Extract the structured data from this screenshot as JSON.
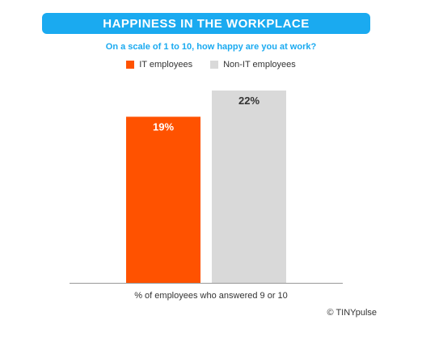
{
  "chart_data": {
    "type": "bar",
    "title": "HAPPINESS IN THE WORKPLACE",
    "subtitle": "On a scale of 1 to 10, how happy are you at work?",
    "xlabel": "% of employees who answered 9 or 10",
    "ylabel": "",
    "ylim": [
      0,
      22
    ],
    "grid": false,
    "legend_position": "top-center",
    "series": [
      {
        "name": "IT employees",
        "values": [
          19
        ],
        "label": "19%",
        "color": "#ff5200",
        "label_color": "#ffffff"
      },
      {
        "name": "Non-IT employees",
        "values": [
          22
        ],
        "label": "22%",
        "color": "#d9d9d9",
        "label_color": "#333333"
      }
    ]
  },
  "source": "© TINYpulse"
}
